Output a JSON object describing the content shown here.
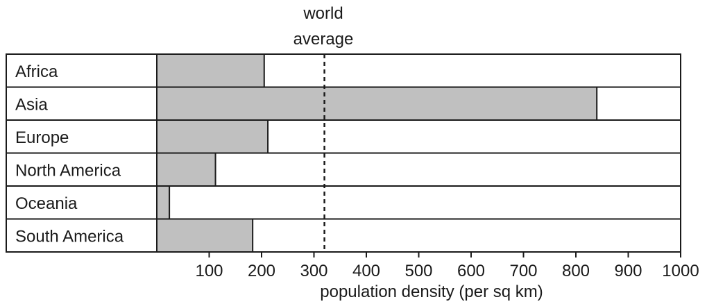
{
  "chart_data": {
    "type": "bar",
    "orientation": "horizontal",
    "categories": [
      "Africa",
      "Asia",
      "Europe",
      "North America",
      "Oceania",
      "South America"
    ],
    "values": [
      205,
      840,
      212,
      112,
      24,
      183
    ],
    "xlabel": "population density (per sq km)",
    "ylabel": "",
    "xlim": [
      0,
      1000
    ],
    "xticks": [
      "100",
      "200",
      "300",
      "400",
      "500",
      "600",
      "700",
      "800",
      "900",
      "1000"
    ],
    "reference_line": {
      "label_line1": "world",
      "label_line2": "average",
      "value": 320,
      "style": "dashed"
    },
    "grid": false,
    "colors": {
      "bar": "#c0c0c0",
      "border": "#1a1a1a",
      "background": "#ffffff"
    }
  }
}
